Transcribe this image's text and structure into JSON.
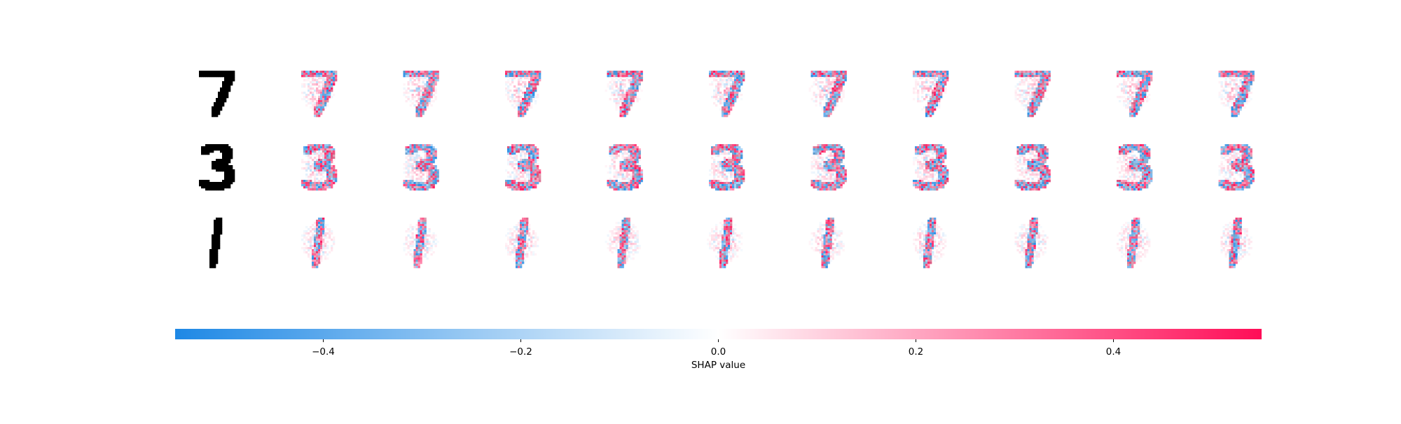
{
  "chart_data": {
    "type": "heatmap",
    "title": "",
    "rows": [
      {
        "label": "7",
        "input_digit": "7"
      },
      {
        "label": "3",
        "input_digit": "3"
      },
      {
        "label": "1",
        "input_digit": "1"
      }
    ],
    "output_classes": 10,
    "colorbar": {
      "label": "SHAP value",
      "range": [
        -0.55,
        0.55
      ],
      "ticks": [
        -0.4,
        -0.2,
        0.0,
        0.2,
        0.4
      ],
      "tick_labels": [
        "−0.4",
        "−0.2",
        "0.0",
        "0.2",
        "0.4"
      ],
      "negative_color": "#1e88e5",
      "zero_color": "#ffffff",
      "positive_color": "#ff0d57"
    },
    "input_color": "#000000",
    "grid": false
  }
}
